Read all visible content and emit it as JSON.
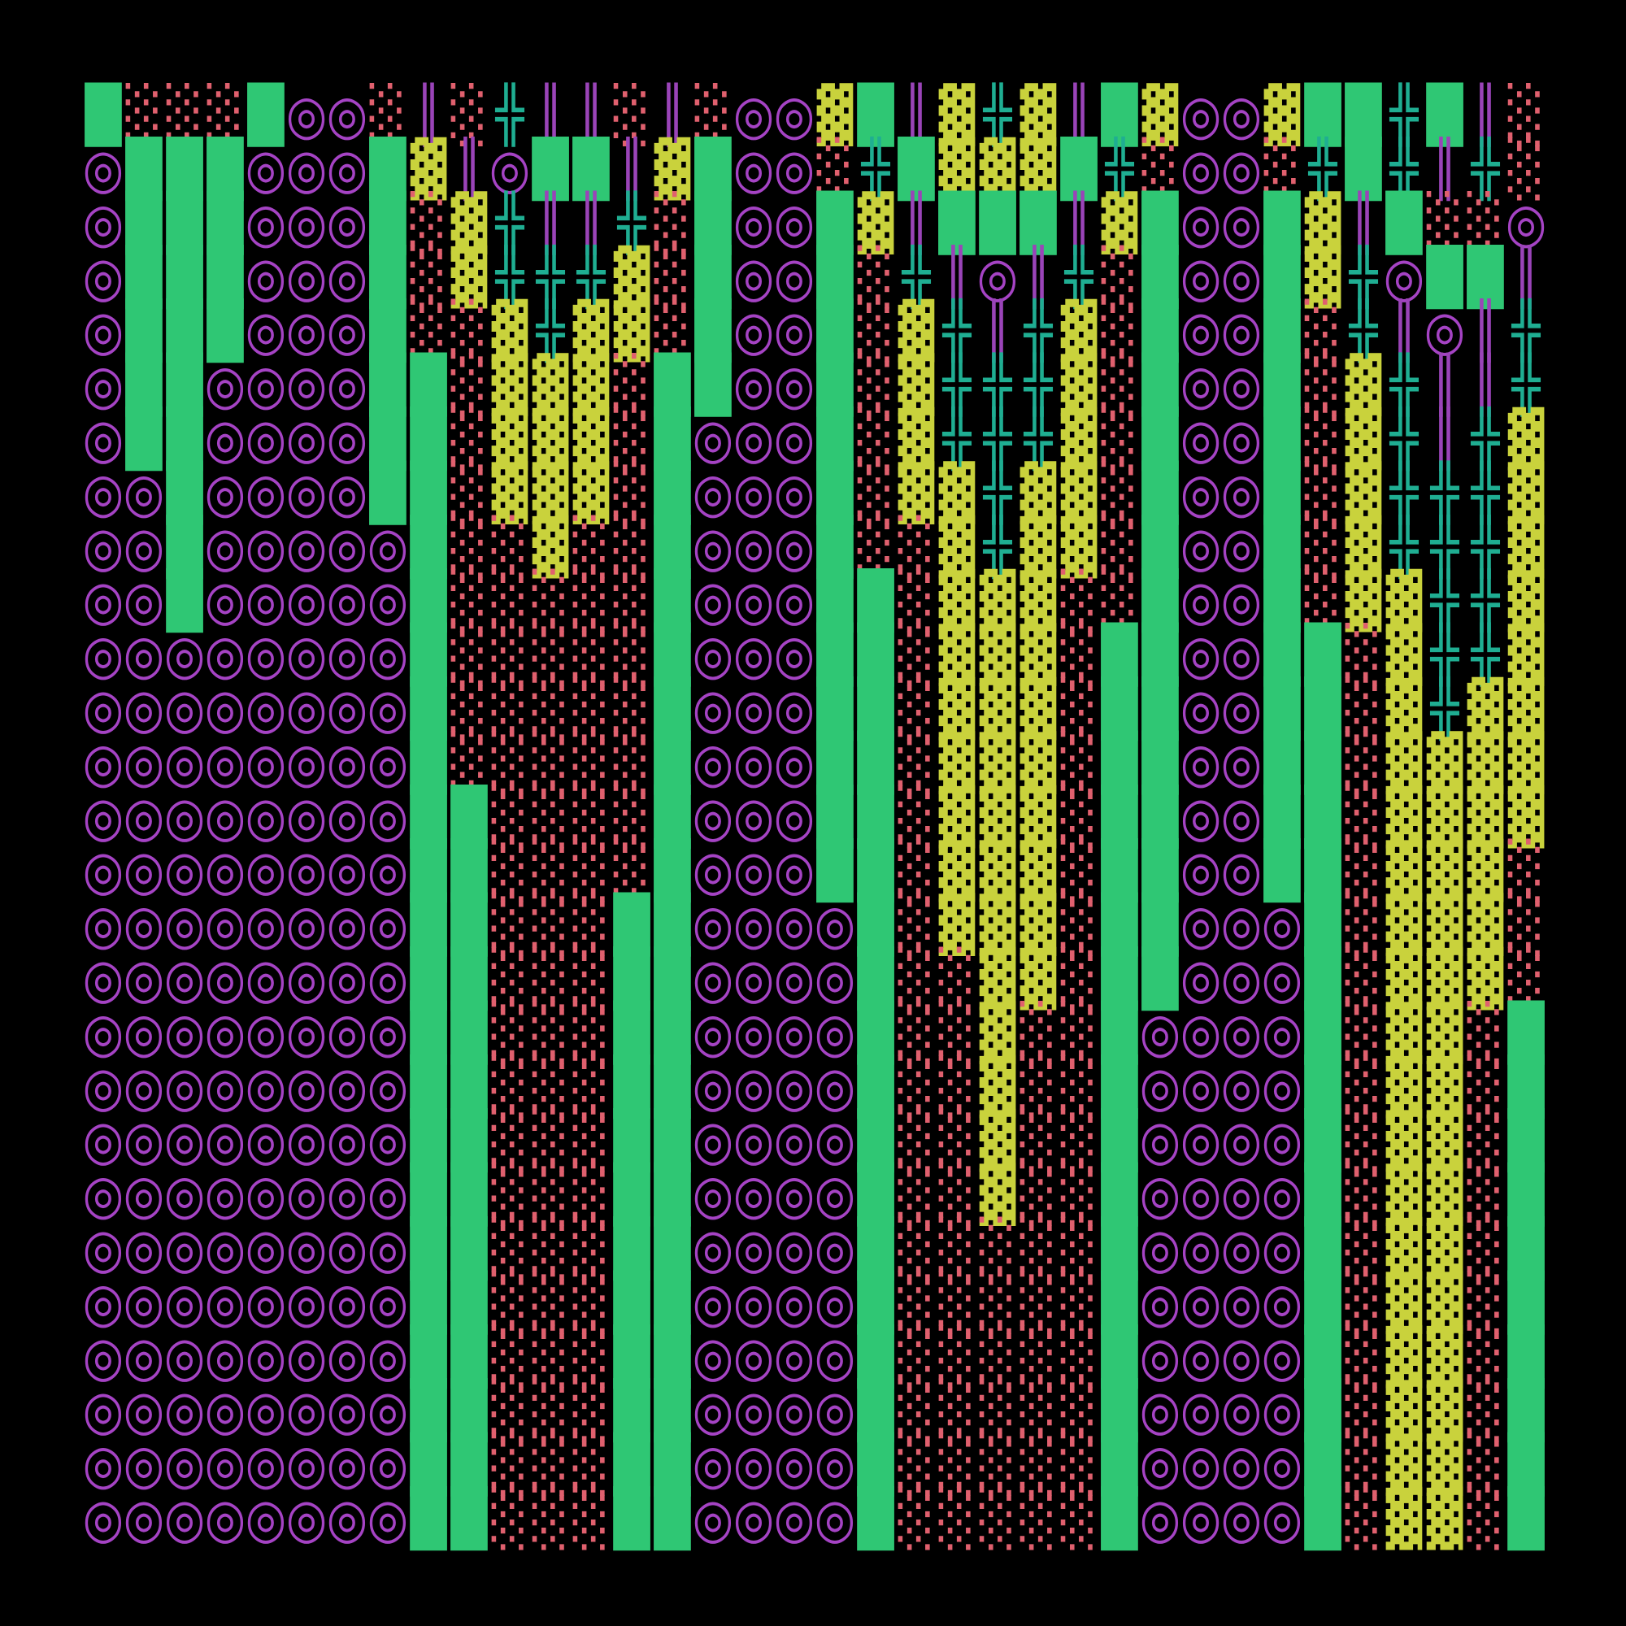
{
  "rows": [
    "█░░░█◎◎░║░╬║║░║░◎◎▓█║▓╬▓║█▓◎◎▓██╬█║░",
    "◎███◎◎◎█▓║◎██║▓█◎◎░╬█▓▓▓█╬░◎◎░╬█╬║╬░",
    "◎███◎◎◎█░▓╬║║╬░█◎◎█▓║███║▓█◎◎█▓║█░░◎",
    "◎███◎◎◎█░▓╬╬╬▓░█◎◎█░╬║◎║╬░█◎◎█▓╬◎██║",
    "◎███◎◎◎█░░▓╬▓▓░█◎◎█░▓╬║╬▓░█◎◎█░╬║◎║╬",
    "◎██◎◎◎◎██░▓▓▓░██◎◎█░▓╬╬╬▓░█◎◎█░▓╬║║╬",
    "◎██◎◎◎◎██░▓▓▓░█◎◎◎█░▓╬╬╬▓░█◎◎█░▓╬║╬▓",
    "◎◎█◎◎◎◎██░▓▓▓░█◎◎◎█░▓▓╬▓▓░█◎◎█░▓╬╬╬▓",
    "◎◎█◎◎◎◎◎█░░▓░░█◎◎◎█░░▓╬▓▓░█◎◎█░▓╬╬╬▓",
    "◎◎█◎◎◎◎◎█░░░░░█◎◎◎██░▓▓▓░░█◎◎█░▓▓╬╬▓",
    "◎◎◎◎◎◎◎◎█░░░░░█◎◎◎██░▓▓▓░██◎◎██░▓╬╬▓",
    "◎◎◎◎◎◎◎◎█░░░░░█◎◎◎██░▓▓▓░██◎◎██░▓╬▓▓",
    "◎◎◎◎◎◎◎◎█░░░░░█◎◎◎██░▓▓▓░██◎◎██░▓▓▓▓",
    "◎◎◎◎◎◎◎◎██░░░░█◎◎◎██░▓▓▓░██◎◎██░▓▓▓▓",
    "◎◎◎◎◎◎◎◎██░░░░█◎◎◎██░▓▓▓░██◎◎██░▓▓▓░",
    "◎◎◎◎◎◎◎◎██░░░██◎◎◎◎█░▓▓▓░██◎◎◎█░▓▓▓░",
    "◎◎◎◎◎◎◎◎██░░░██◎◎◎◎█░░▓▓░██◎◎◎█░▓▓▓░",
    "◎◎◎◎◎◎◎◎██░░░██◎◎◎◎█░░▓░░█◎◎◎◎█░▓▓░█",
    "◎◎◎◎◎◎◎◎██░░░██◎◎◎◎█░░▓░░█◎◎◎◎█░▓▓░█",
    "◎◎◎◎◎◎◎◎██░░░██◎◎◎◎█░░▓░░█◎◎◎◎█░▓▓░█",
    "◎◎◎◎◎◎◎◎██░░░██◎◎◎◎█░░▓░░█◎◎◎◎█░▓▓░█",
    "◎◎◎◎◎◎◎◎██░░░██◎◎◎◎█░░░░░█◎◎◎◎█░▓▓░█",
    "◎◎◎◎◎◎◎◎██░░░██◎◎◎◎█░░░░░█◎◎◎◎█░▓▓░█",
    "◎◎◎◎◎◎◎◎██░░░██◎◎◎◎█░░░░░█◎◎◎◎█░▓▓░█",
    "◎◎◎◎◎◎◎◎██░░░██◎◎◎◎█░░░░░█◎◎◎◎█░▓▓░█",
    "◎◎◎◎◎◎◎◎██░░░██◎◎◎◎█░░░░░█◎◎◎◎█░▓▓░█",
    "◎◎◎◎◎◎◎◎██░░░██◎◎◎◎█░░░░░█◎◎◎◎█░▓▓░█"
  ],
  "colors": {
    "◎": "#a543c4",
    "█": "#2fc774",
    "░": "#e0606e",
    "▓": "#c9d23c",
    "╬": "#1fae92",
    "║": "#9a44b8"
  }
}
